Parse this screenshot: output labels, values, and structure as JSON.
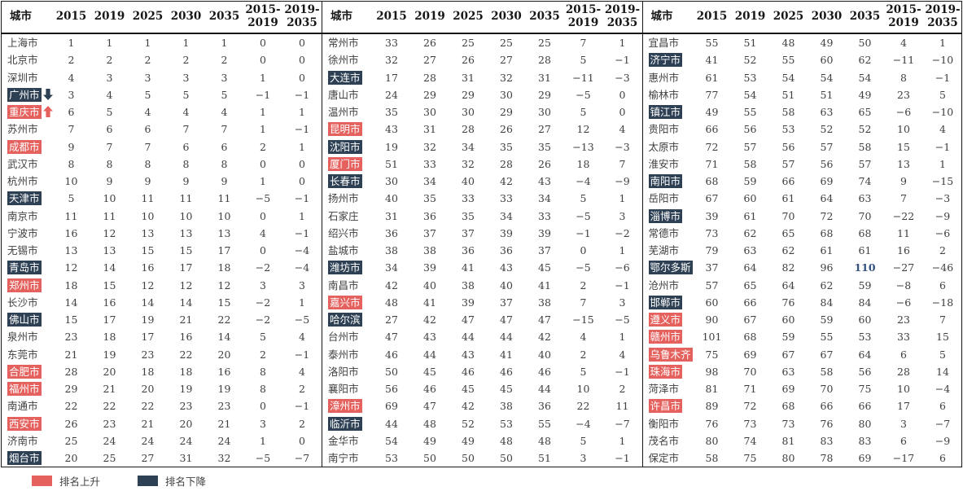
{
  "colors": {
    "up": "#E5615E",
    "down": "#2E4054",
    "emph": "#35517E",
    "border": "#161616"
  },
  "columns": [
    "城市",
    "2015",
    "2019",
    "2025",
    "2030",
    "2035",
    "2015-\n2019",
    "2019-\n2035"
  ],
  "legend": {
    "up_label": "排名上升",
    "down_label": "排名下降"
  },
  "panels": [
    {
      "name": "panel-left",
      "rows": [
        {
          "city": "上海市",
          "highlight": null,
          "arrow": null,
          "values": [
            1,
            1,
            1,
            1,
            1,
            0,
            0
          ]
        },
        {
          "city": "北京市",
          "highlight": null,
          "arrow": null,
          "values": [
            2,
            2,
            2,
            2,
            2,
            0,
            0
          ]
        },
        {
          "city": "深圳市",
          "highlight": null,
          "arrow": null,
          "values": [
            4,
            3,
            3,
            3,
            3,
            1,
            0
          ]
        },
        {
          "city": "广州市",
          "highlight": "down",
          "arrow": "down",
          "values": [
            3,
            4,
            5,
            5,
            5,
            -1,
            -1
          ]
        },
        {
          "city": "重庆市",
          "highlight": "up",
          "arrow": "up",
          "values": [
            6,
            5,
            4,
            4,
            4,
            1,
            1
          ]
        },
        {
          "city": "苏州市",
          "highlight": null,
          "arrow": null,
          "values": [
            7,
            6,
            6,
            7,
            7,
            1,
            -1
          ]
        },
        {
          "city": "成都市",
          "highlight": "up",
          "arrow": null,
          "values": [
            9,
            7,
            7,
            6,
            6,
            2,
            1
          ]
        },
        {
          "city": "武汉市",
          "highlight": null,
          "arrow": null,
          "values": [
            8,
            8,
            8,
            8,
            8,
            0,
            0
          ]
        },
        {
          "city": "杭州市",
          "highlight": null,
          "arrow": null,
          "values": [
            10,
            9,
            9,
            9,
            9,
            1,
            0
          ]
        },
        {
          "city": "天津市",
          "highlight": "down",
          "arrow": null,
          "values": [
            5,
            10,
            11,
            11,
            11,
            -5,
            -1
          ]
        },
        {
          "city": "南京市",
          "highlight": null,
          "arrow": null,
          "values": [
            11,
            11,
            10,
            10,
            10,
            0,
            1
          ]
        },
        {
          "city": "宁波市",
          "highlight": null,
          "arrow": null,
          "values": [
            16,
            12,
            13,
            13,
            13,
            4,
            -1
          ]
        },
        {
          "city": "无锡市",
          "highlight": null,
          "arrow": null,
          "values": [
            13,
            13,
            15,
            15,
            17,
            0,
            -4
          ]
        },
        {
          "city": "青岛市",
          "highlight": "down",
          "arrow": null,
          "values": [
            12,
            14,
            16,
            17,
            18,
            -2,
            -4
          ]
        },
        {
          "city": "郑州市",
          "highlight": "up",
          "arrow": null,
          "values": [
            18,
            15,
            12,
            12,
            12,
            3,
            3
          ]
        },
        {
          "city": "长沙市",
          "highlight": null,
          "arrow": null,
          "values": [
            14,
            16,
            14,
            14,
            15,
            -2,
            1
          ]
        },
        {
          "city": "佛山市",
          "highlight": "down",
          "arrow": null,
          "values": [
            15,
            17,
            19,
            21,
            22,
            -2,
            -5
          ]
        },
        {
          "city": "泉州市",
          "highlight": null,
          "arrow": null,
          "values": [
            23,
            18,
            17,
            16,
            14,
            5,
            4
          ]
        },
        {
          "city": "东莞市",
          "highlight": null,
          "arrow": null,
          "values": [
            21,
            19,
            23,
            22,
            20,
            2,
            -1
          ]
        },
        {
          "city": "合肥市",
          "highlight": "up",
          "arrow": null,
          "values": [
            28,
            20,
            18,
            18,
            16,
            8,
            4
          ]
        },
        {
          "city": "福州市",
          "highlight": "up",
          "arrow": null,
          "values": [
            29,
            21,
            20,
            19,
            19,
            8,
            2
          ]
        },
        {
          "city": "南通市",
          "highlight": null,
          "arrow": null,
          "values": [
            22,
            22,
            22,
            23,
            23,
            0,
            -1
          ]
        },
        {
          "city": "西安市",
          "highlight": "up",
          "arrow": null,
          "values": [
            26,
            23,
            21,
            20,
            21,
            3,
            2
          ]
        },
        {
          "city": "济南市",
          "highlight": null,
          "arrow": null,
          "values": [
            25,
            24,
            24,
            24,
            24,
            1,
            0
          ]
        },
        {
          "city": "烟台市",
          "highlight": "down",
          "arrow": null,
          "values": [
            20,
            25,
            27,
            31,
            32,
            -5,
            -7
          ]
        }
      ]
    },
    {
      "name": "panel-middle",
      "rows": [
        {
          "city": "常州市",
          "highlight": null,
          "arrow": null,
          "values": [
            33,
            26,
            25,
            25,
            25,
            7,
            1
          ]
        },
        {
          "city": "徐州市",
          "highlight": null,
          "arrow": null,
          "values": [
            32,
            27,
            26,
            27,
            28,
            5,
            -1
          ]
        },
        {
          "city": "大连市",
          "highlight": "down",
          "arrow": null,
          "values": [
            17,
            28,
            31,
            32,
            31,
            -11,
            -3
          ]
        },
        {
          "city": "唐山市",
          "highlight": null,
          "arrow": null,
          "values": [
            24,
            29,
            29,
            30,
            29,
            -5,
            0
          ]
        },
        {
          "city": "温州市",
          "highlight": null,
          "arrow": null,
          "values": [
            35,
            30,
            30,
            29,
            30,
            5,
            0
          ]
        },
        {
          "city": "昆明市",
          "highlight": "up",
          "arrow": null,
          "values": [
            43,
            31,
            28,
            26,
            27,
            12,
            4
          ]
        },
        {
          "city": "沈阳市",
          "highlight": "down",
          "arrow": null,
          "values": [
            19,
            32,
            34,
            35,
            35,
            -13,
            -3
          ]
        },
        {
          "city": "厦门市",
          "highlight": "up",
          "arrow": null,
          "values": [
            51,
            33,
            32,
            28,
            26,
            18,
            7
          ]
        },
        {
          "city": "长春市",
          "highlight": "down",
          "arrow": null,
          "values": [
            30,
            34,
            40,
            42,
            43,
            -4,
            -9
          ]
        },
        {
          "city": "扬州市",
          "highlight": null,
          "arrow": null,
          "values": [
            40,
            35,
            33,
            33,
            34,
            5,
            1
          ]
        },
        {
          "city": "石家庄",
          "highlight": null,
          "arrow": null,
          "values": [
            31,
            36,
            35,
            34,
            33,
            -5,
            3
          ]
        },
        {
          "city": "绍兴市",
          "highlight": null,
          "arrow": null,
          "values": [
            36,
            37,
            37,
            39,
            39,
            -1,
            -2
          ]
        },
        {
          "city": "盐城市",
          "highlight": null,
          "arrow": null,
          "values": [
            38,
            38,
            36,
            36,
            37,
            0,
            1
          ]
        },
        {
          "city": "潍坊市",
          "highlight": "down",
          "arrow": null,
          "values": [
            34,
            39,
            41,
            43,
            45,
            -5,
            -6
          ]
        },
        {
          "city": "南昌市",
          "highlight": null,
          "arrow": null,
          "values": [
            42,
            40,
            38,
            40,
            41,
            2,
            -1
          ]
        },
        {
          "city": "嘉兴市",
          "highlight": "up",
          "arrow": null,
          "values": [
            48,
            41,
            39,
            37,
            38,
            7,
            3
          ]
        },
        {
          "city": "哈尔滨",
          "highlight": "down",
          "arrow": null,
          "values": [
            27,
            42,
            47,
            47,
            47,
            -15,
            -5
          ]
        },
        {
          "city": "台州市",
          "highlight": null,
          "arrow": null,
          "values": [
            47,
            43,
            44,
            44,
            42,
            4,
            1
          ]
        },
        {
          "city": "泰州市",
          "highlight": null,
          "arrow": null,
          "values": [
            46,
            44,
            43,
            41,
            40,
            2,
            4
          ]
        },
        {
          "city": "洛阳市",
          "highlight": null,
          "arrow": null,
          "values": [
            50,
            45,
            46,
            46,
            46,
            5,
            -1
          ]
        },
        {
          "city": "襄阳市",
          "highlight": null,
          "arrow": null,
          "values": [
            56,
            46,
            45,
            45,
            44,
            10,
            2
          ]
        },
        {
          "city": "漳州市",
          "highlight": "up",
          "arrow": null,
          "values": [
            69,
            47,
            42,
            38,
            36,
            22,
            11
          ]
        },
        {
          "city": "临沂市",
          "highlight": "down",
          "arrow": null,
          "values": [
            44,
            48,
            52,
            53,
            55,
            -4,
            -7
          ]
        },
        {
          "city": "金华市",
          "highlight": null,
          "arrow": null,
          "values": [
            54,
            49,
            49,
            48,
            48,
            5,
            1
          ]
        },
        {
          "city": "南宁市",
          "highlight": null,
          "arrow": null,
          "values": [
            53,
            50,
            50,
            50,
            51,
            3,
            -1
          ]
        }
      ]
    },
    {
      "name": "panel-right",
      "rows": [
        {
          "city": "宜昌市",
          "highlight": null,
          "arrow": null,
          "values": [
            55,
            51,
            48,
            49,
            50,
            4,
            1
          ]
        },
        {
          "city": "济宁市",
          "highlight": "down",
          "arrow": null,
          "values": [
            41,
            52,
            55,
            60,
            62,
            -11,
            -10
          ]
        },
        {
          "city": "惠州市",
          "highlight": null,
          "arrow": null,
          "values": [
            61,
            53,
            54,
            54,
            54,
            8,
            -1
          ]
        },
        {
          "city": "榆林市",
          "highlight": null,
          "arrow": null,
          "values": [
            77,
            54,
            51,
            51,
            49,
            23,
            5
          ]
        },
        {
          "city": "镇江市",
          "highlight": "down",
          "arrow": null,
          "values": [
            49,
            55,
            58,
            63,
            65,
            -6,
            -10
          ]
        },
        {
          "city": "贵阳市",
          "highlight": null,
          "arrow": null,
          "values": [
            66,
            56,
            53,
            52,
            52,
            10,
            4
          ]
        },
        {
          "city": "太原市",
          "highlight": null,
          "arrow": null,
          "values": [
            72,
            57,
            56,
            57,
            58,
            15,
            -1
          ]
        },
        {
          "city": "淮安市",
          "highlight": null,
          "arrow": null,
          "values": [
            71,
            58,
            57,
            56,
            57,
            13,
            1
          ]
        },
        {
          "city": "南阳市",
          "highlight": "down",
          "arrow": null,
          "values": [
            68,
            59,
            66,
            69,
            74,
            9,
            -15
          ]
        },
        {
          "city": "岳阳市",
          "highlight": null,
          "arrow": null,
          "values": [
            67,
            60,
            61,
            64,
            63,
            7,
            -3
          ]
        },
        {
          "city": "淄博市",
          "highlight": "down",
          "arrow": null,
          "values": [
            39,
            61,
            70,
            72,
            70,
            -22,
            -9
          ]
        },
        {
          "city": "常德市",
          "highlight": null,
          "arrow": null,
          "values": [
            73,
            62,
            65,
            68,
            68,
            11,
            -6
          ]
        },
        {
          "city": "芜湖市",
          "highlight": null,
          "arrow": null,
          "values": [
            79,
            63,
            62,
            61,
            61,
            16,
            2
          ]
        },
        {
          "city": "鄂尔多斯",
          "highlight": "down",
          "arrow": null,
          "values": [
            37,
            64,
            82,
            96,
            110,
            -27,
            -46
          ],
          "emph_col": 4
        },
        {
          "city": "沧州市",
          "highlight": null,
          "arrow": null,
          "values": [
            57,
            65,
            64,
            62,
            59,
            -8,
            6
          ]
        },
        {
          "city": "邯郸市",
          "highlight": "down",
          "arrow": null,
          "values": [
            60,
            66,
            76,
            84,
            84,
            -6,
            -18
          ]
        },
        {
          "city": "遵义市",
          "highlight": "up",
          "arrow": null,
          "values": [
            90,
            67,
            60,
            59,
            60,
            23,
            7
          ]
        },
        {
          "city": "赣州市",
          "highlight": "up",
          "arrow": null,
          "values": [
            101,
            68,
            59,
            55,
            53,
            33,
            15
          ]
        },
        {
          "city": "乌鲁木齐",
          "highlight": "up",
          "arrow": null,
          "values": [
            75,
            69,
            67,
            67,
            64,
            6,
            5
          ]
        },
        {
          "city": "珠海市",
          "highlight": "up",
          "arrow": null,
          "values": [
            98,
            70,
            63,
            58,
            56,
            28,
            14
          ]
        },
        {
          "city": "菏泽市",
          "highlight": null,
          "arrow": null,
          "values": [
            81,
            71,
            69,
            70,
            75,
            10,
            -4
          ]
        },
        {
          "city": "许昌市",
          "highlight": "up",
          "arrow": null,
          "values": [
            89,
            72,
            68,
            66,
            66,
            17,
            6
          ]
        },
        {
          "city": "衡阳市",
          "highlight": null,
          "arrow": null,
          "values": [
            76,
            73,
            73,
            76,
            80,
            3,
            -7
          ]
        },
        {
          "city": "茂名市",
          "highlight": null,
          "arrow": null,
          "values": [
            80,
            74,
            81,
            83,
            83,
            6,
            -9
          ]
        },
        {
          "city": "保定市",
          "highlight": null,
          "arrow": null,
          "values": [
            58,
            75,
            80,
            78,
            69,
            -17,
            6
          ]
        }
      ]
    }
  ]
}
